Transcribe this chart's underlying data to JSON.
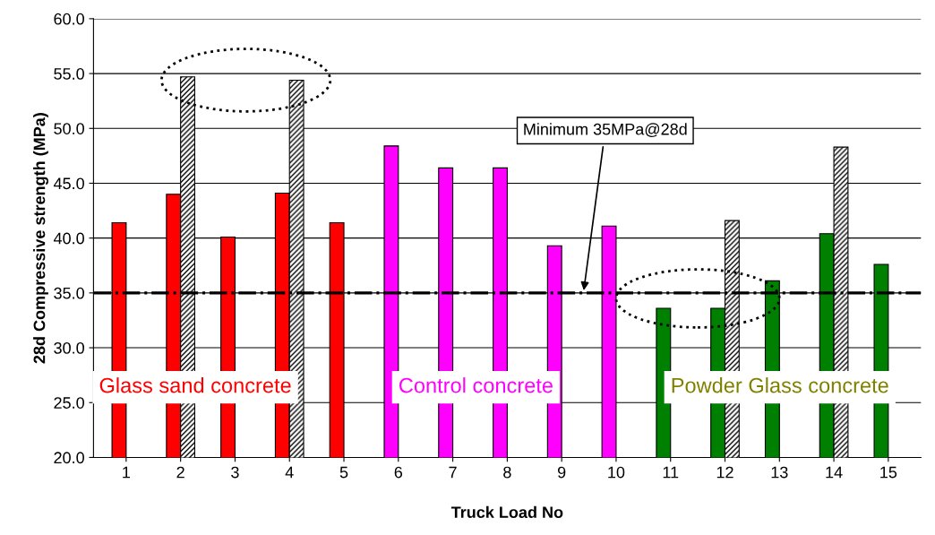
{
  "chart_data": {
    "type": "bar",
    "xlabel": "Truck Load No",
    "ylabel": "28d Compressive strength (MPa)",
    "categories": [
      "1",
      "2",
      "3",
      "4",
      "5",
      "6",
      "7",
      "8",
      "9",
      "10",
      "11",
      "12",
      "13",
      "14",
      "15"
    ],
    "series": [
      {
        "colors": [
          "#ff0000",
          "#ff0000",
          "#ff0000",
          "#ff0000",
          "#ff0000",
          "#ff00ff",
          "#ff00ff",
          "#ff00ff",
          "#ff00ff",
          "#ff00ff",
          "#008000",
          "#008000",
          "#008000",
          "#008000",
          "#008000"
        ],
        "values": [
          41.4,
          44.0,
          40.1,
          44.1,
          41.4,
          48.4,
          46.4,
          46.4,
          39.3,
          41.1,
          33.6,
          33.6,
          36.1,
          40.4,
          37.6
        ]
      },
      {
        "color": "#000000",
        "values": [
          null,
          54.7,
          null,
          54.4,
          null,
          null,
          null,
          null,
          null,
          null,
          null,
          41.6,
          null,
          48.3,
          null
        ]
      }
    ],
    "ylim": [
      20,
      60
    ],
    "yticks": [
      {
        "value": 20,
        "label": "20.0"
      },
      {
        "value": 25,
        "label": "25.0"
      },
      {
        "value": 30,
        "label": "30.0"
      },
      {
        "value": 35,
        "label": "35.0"
      },
      {
        "value": 40,
        "label": "40.0"
      },
      {
        "value": 45,
        "label": "45.0"
      },
      {
        "value": 50,
        "label": "50.0"
      },
      {
        "value": 55,
        "label": "55.0"
      },
      {
        "value": 60,
        "label": "60.0"
      }
    ],
    "grid": "y",
    "legend": false,
    "ref_lines": [
      {
        "axis": "y",
        "value": 35,
        "label": "Minimum 35MPa@28d",
        "color": "#000000",
        "line_style": "dashdot"
      }
    ],
    "annotations": [
      "Glass sand concrete",
      "Control concrete",
      "Powder Glass concrete"
    ]
  }
}
